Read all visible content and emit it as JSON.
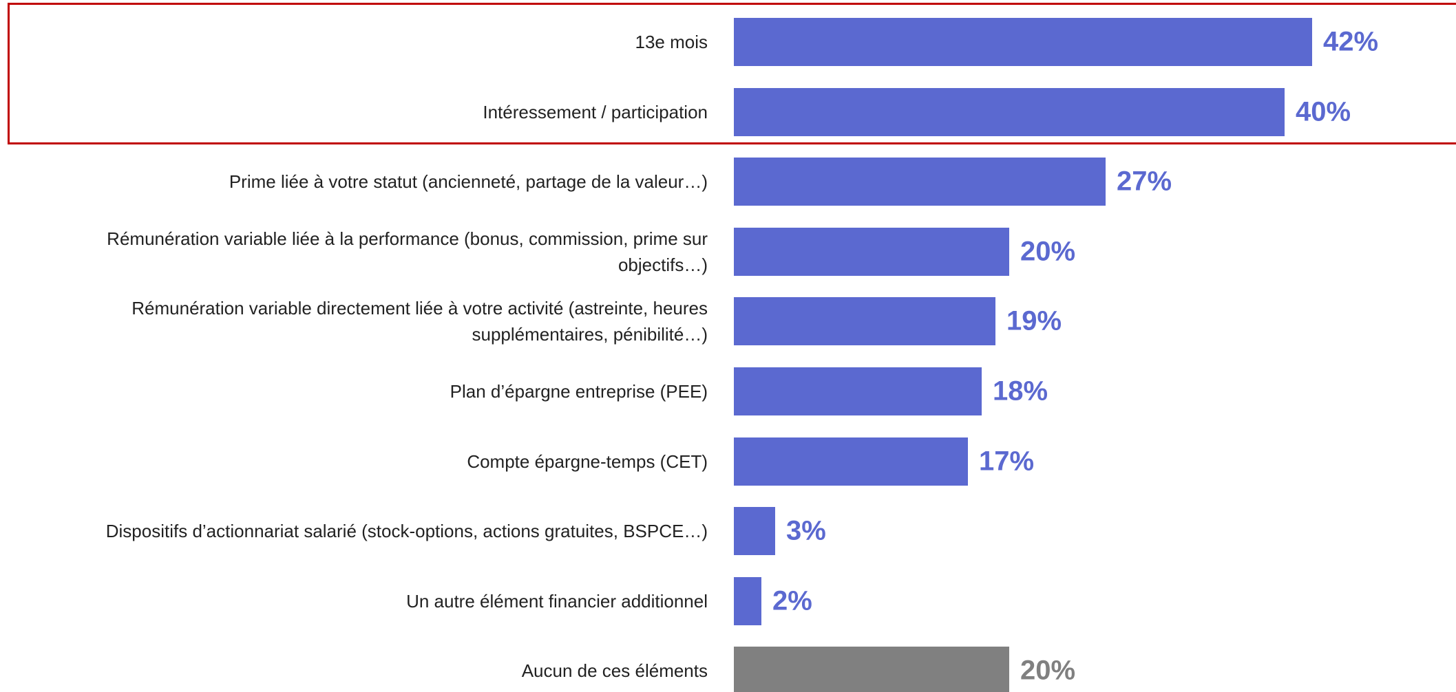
{
  "chart_data": {
    "type": "barh",
    "categories": [
      "13e mois",
      "Intéressement / participation",
      "Prime liée à votre statut (ancienneté, partage de la valeur…)",
      "Rémunération variable liée à la performance (bonus, commission, prime sur objectifs…)",
      "Rémunération variable directement liée à votre activité (astreinte, heures supplémentaires, pénibilité…)",
      "Plan d’épargne entreprise (PEE)",
      "Compte épargne-temps (CET)",
      "Dispositifs d’actionnariat salarié (stock-options, actions gratuites, BSPCE…)",
      "Un autre élément financier additionnel",
      "Aucun de ces éléments"
    ],
    "values": [
      42,
      40,
      27,
      20,
      19,
      18,
      17,
      3,
      2,
      20
    ],
    "value_labels": [
      "42%",
      "40%",
      "27%",
      "20%",
      "19%",
      "18%",
      "17%",
      "3%",
      "2%",
      "20%"
    ],
    "colors": [
      "#5b69d0",
      "#5b69d0",
      "#5b69d0",
      "#5b69d0",
      "#5b69d0",
      "#5b69d0",
      "#5b69d0",
      "#5b69d0",
      "#5b69d0",
      "#808080"
    ]
  }
}
